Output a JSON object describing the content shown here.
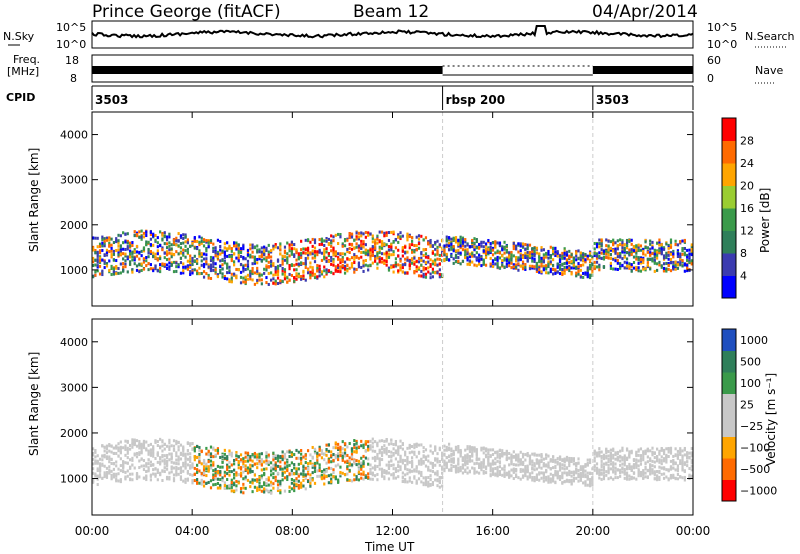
{
  "header": {
    "station": "Prince George (fitACF)",
    "beam": "Beam 12",
    "date": "04/Apr/2014"
  },
  "strips": {
    "nsky_label": "N.Sky",
    "nsearch_label": "N.Search",
    "nsky_ticks": [
      "10^5",
      "10^0"
    ],
    "freq_label": "Freq.",
    "freq_unit": "[MHz]",
    "freq_ticks": [
      "18",
      "8"
    ],
    "nave_label": "Nave",
    "nave_ticks": [
      "60",
      "0"
    ],
    "cpid_label": "CPID",
    "cpid_segments": [
      {
        "label": "3503",
        "start_h": 0,
        "end_h": 14
      },
      {
        "label": "rbsp 200",
        "start_h": 14,
        "end_h": 20
      },
      {
        "label": "3503",
        "start_h": 20,
        "end_h": 24
      }
    ]
  },
  "colors": {
    "power": [
      "#0000ff",
      "#3b3bb0",
      "#2f7f5a",
      "#3a9a4a",
      "#9acd32",
      "#ffa500",
      "#ff6a00",
      "#ff0000"
    ],
    "velocity": [
      "#ff0000",
      "#ff6a00",
      "#ffa500",
      "#c8c8c8",
      "#c8c8c8",
      "#3a9a4a",
      "#2f7f5a",
      "#1f4fbf"
    ]
  },
  "chart_data": [
    {
      "type": "heatmap",
      "panel": "power",
      "ylabel": "Slant Range [km]",
      "ylim": [
        200,
        4500
      ],
      "yticks": [
        "1000",
        "2000",
        "3000",
        "4000"
      ],
      "colorbar_label": "Power [dB]",
      "colorbar_ticks": [
        "4",
        "8",
        "12",
        "16",
        "20",
        "24",
        "28"
      ],
      "xlim_hours": [
        0,
        24
      ]
    },
    {
      "type": "heatmap",
      "panel": "velocity",
      "ylabel": "Slant Range [km]",
      "ylim": [
        200,
        4500
      ],
      "yticks": [
        "1000",
        "2000",
        "3000",
        "4000"
      ],
      "colorbar_label": "Velocity [m s⁻¹]",
      "colorbar_ticks": [
        "1000",
        "500",
        "100",
        "25",
        "−25",
        "−100",
        "−500",
        "−1000"
      ],
      "xlim_hours": [
        0,
        24
      ]
    }
  ],
  "xaxis": {
    "ticks": [
      "00:00",
      "04:00",
      "08:00",
      "12:00",
      "16:00",
      "20:00",
      "00:00"
    ],
    "label": "Time UT"
  }
}
